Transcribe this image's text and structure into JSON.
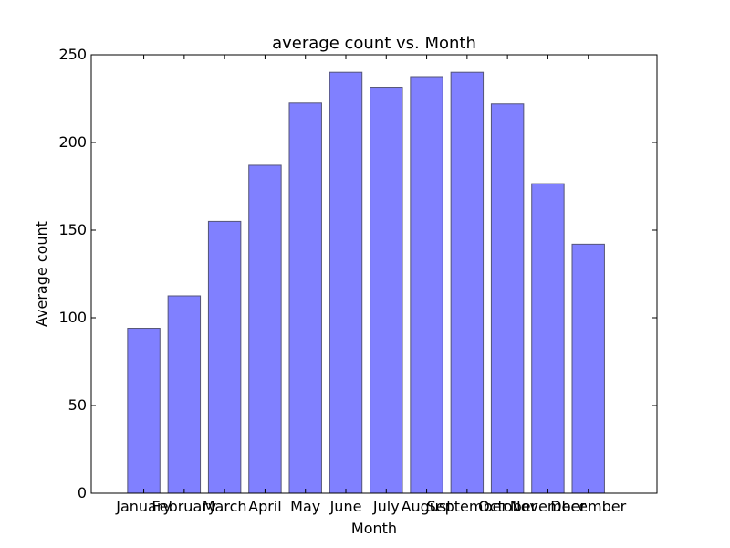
{
  "chart_data": {
    "type": "bar",
    "title": "average count vs. Month",
    "xlabel": "Month",
    "ylabel": "Average count",
    "categories": [
      "January",
      "February",
      "March",
      "April",
      "May",
      "June",
      "July",
      "August",
      "September",
      "October",
      "November",
      "December"
    ],
    "values": [
      94,
      112.5,
      155,
      187,
      222.5,
      240,
      231.5,
      237.5,
      240,
      222,
      176.5,
      142
    ],
    "ylim": [
      0,
      250
    ],
    "yticks": [
      0,
      50,
      100,
      150,
      200,
      250
    ],
    "grid": false,
    "bar_color": "#8080ff",
    "edge_color": "#555577"
  }
}
